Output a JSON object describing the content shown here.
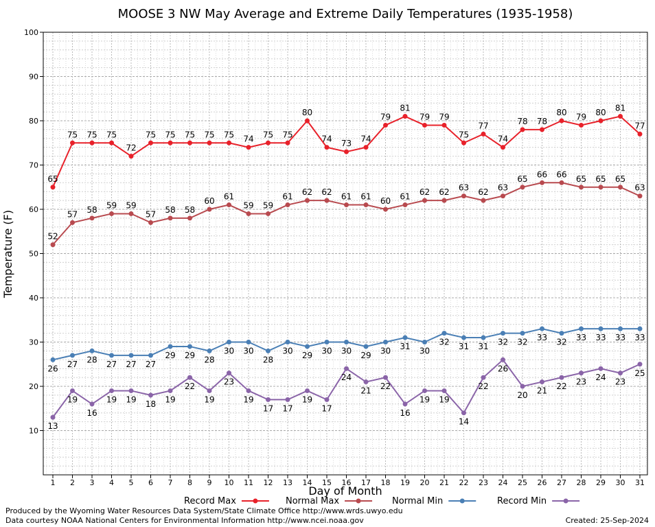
{
  "chart_data": {
    "type": "line",
    "title": "MOOSE 3 NW May Average and Extreme Daily Temperatures (1935-1958)",
    "xlabel": "Day of Month",
    "ylabel": "Temperature (F)",
    "ylim": [
      0,
      100
    ],
    "yticks": [
      10,
      20,
      30,
      40,
      50,
      60,
      70,
      80,
      90,
      100
    ],
    "x": [
      1,
      2,
      3,
      4,
      5,
      6,
      7,
      8,
      9,
      10,
      11,
      12,
      13,
      14,
      15,
      16,
      17,
      18,
      19,
      20,
      21,
      22,
      23,
      24,
      25,
      26,
      27,
      28,
      29,
      30,
      31
    ],
    "grid": true,
    "legend_position": "bottom",
    "series": [
      {
        "name": "Record Max",
        "color": "#e8212a",
        "label_position": "above",
        "values": [
          65,
          75,
          75,
          75,
          72,
          75,
          75,
          75,
          75,
          75,
          74,
          75,
          75,
          80,
          74,
          73,
          74,
          79,
          81,
          79,
          79,
          75,
          77,
          74,
          78,
          78,
          80,
          79,
          80,
          81,
          77
        ]
      },
      {
        "name": "Normal Max",
        "color": "#b84a4f",
        "label_position": "above",
        "values": [
          52,
          57,
          58,
          59,
          59,
          57,
          58,
          58,
          60,
          61,
          59,
          59,
          61,
          62,
          62,
          61,
          61,
          60,
          61,
          62,
          62,
          63,
          62,
          63,
          65,
          66,
          66,
          65,
          65,
          65,
          63
        ]
      },
      {
        "name": "Normal Min",
        "color": "#4a7fb5",
        "label_position": "below",
        "values": [
          26,
          27,
          28,
          27,
          27,
          27,
          29,
          29,
          28,
          30,
          30,
          28,
          30,
          29,
          30,
          30,
          29,
          30,
          31,
          30,
          32,
          31,
          31,
          32,
          32,
          33,
          32,
          33,
          33,
          33,
          33
        ]
      },
      {
        "name": "Record Min",
        "color": "#8a64a8",
        "label_position": "below",
        "values": [
          13,
          19,
          16,
          19,
          19,
          18,
          19,
          22,
          19,
          23,
          19,
          17,
          17,
          19,
          17,
          24,
          21,
          22,
          16,
          19,
          19,
          14,
          22,
          26,
          20,
          21,
          22,
          23,
          24,
          23,
          25
        ]
      }
    ]
  },
  "footer": {
    "line1": "Produced by the Wyoming Water Resources Data System/State Climate Office http://www.wrds.uwyo.edu",
    "line2": "Data courtesy NOAA National Centers for Environmental Information http://www.ncei.noaa.gov",
    "created": "Created:  25-Sep-2024"
  }
}
